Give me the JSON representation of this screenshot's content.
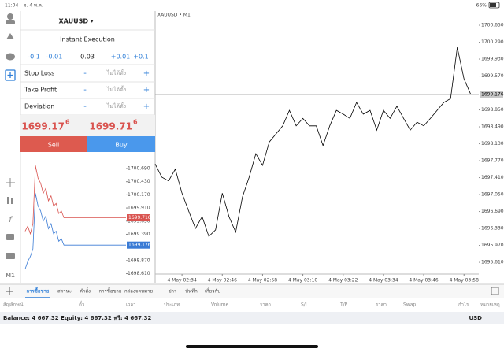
{
  "status_bar": {
    "time": "11:04",
    "date": "จ. 4 พ.ค.",
    "battery": "66%"
  },
  "sidebar": {
    "timeframe": "M1"
  },
  "order_panel": {
    "symbol": "XAUUSD",
    "symbol_caret": "▾",
    "execution": "Instant Execution",
    "volume_steps": [
      "-0.1",
      "-0.01",
      "0.03",
      "+0.01",
      "+0.1"
    ],
    "fields": [
      {
        "label": "Stop Loss",
        "minus": "-",
        "value": "ไม่ได้ตั้ง",
        "plus": "+"
      },
      {
        "label": "Take Profit",
        "minus": "-",
        "value": "ไม่ได้ตั้ง",
        "plus": "+"
      },
      {
        "label": "Deviation",
        "minus": "-",
        "value": "ไม่ได้ตั้ง",
        "plus": "+"
      }
    ],
    "sell_price": {
      "main": "1699.17",
      "sup": "6"
    },
    "buy_price": {
      "main": "1699.71",
      "sup": "6"
    },
    "sell": "Sell",
    "buy": "Buy"
  },
  "chart_data": [
    {
      "type": "line",
      "title": "XAUUSD • M1",
      "series": [
        {
          "color": "#000000",
          "values": [
            1697.7,
            1697.42,
            1697.34,
            1697.59,
            1697.08,
            1696.7,
            1696.33,
            1696.58,
            1696.16,
            1696.3,
            1697.08,
            1696.58,
            1696.25,
            1697.0,
            1697.42,
            1697.92,
            1697.67,
            1698.17,
            1698.34,
            1698.51,
            1698.84,
            1698.51,
            1698.67,
            1698.51,
            1698.51,
            1698.09,
            1698.51,
            1698.84,
            1698.76,
            1698.67,
            1699.01,
            1698.76,
            1698.84,
            1698.42,
            1698.84,
            1698.67,
            1698.93,
            1698.67,
            1698.42,
            1698.59,
            1698.51,
            1698.67,
            1698.84,
            1699.01,
            1699.09,
            1700.18,
            1699.51,
            1699.18
          ]
        }
      ],
      "xlim": [
        0,
        48.2
      ],
      "xticks": [
        {
          "value": 4,
          "label": "4 May 02:34"
        },
        {
          "value": 10,
          "label": "4 May 02:46"
        },
        {
          "value": 16,
          "label": "4 May 02:58"
        },
        {
          "value": 22,
          "label": "4 May 03:10"
        },
        {
          "value": 28,
          "label": "4 May 03:22"
        },
        {
          "value": 34,
          "label": "4 May 03:34"
        },
        {
          "value": 40,
          "label": "4 May 03:46"
        },
        {
          "value": 46,
          "label": "4 May 03:58"
        }
      ],
      "ylim": [
        1695.36,
        1700.935
      ],
      "yticks": [
        {
          "value": 1700.65,
          "label": "1700.650"
        },
        {
          "value": 1700.29,
          "label": "1700.290"
        },
        {
          "value": 1699.93,
          "label": "1699.930"
        },
        {
          "value": 1699.57,
          "label": "1699.570"
        },
        {
          "value": 1698.85,
          "label": "1698.850"
        },
        {
          "value": 1698.49,
          "label": "1698.490"
        },
        {
          "value": 1698.13,
          "label": "1698.130"
        },
        {
          "value": 1697.77,
          "label": "1697.770"
        },
        {
          "value": 1697.41,
          "label": "1697.410"
        },
        {
          "value": 1697.05,
          "label": "1697.050"
        },
        {
          "value": 1696.69,
          "label": "1696.690"
        },
        {
          "value": 1696.33,
          "label": "1696.330"
        },
        {
          "value": 1695.97,
          "label": "1695.970"
        },
        {
          "value": 1695.61,
          "label": "1695.610"
        }
      ],
      "markers": [
        {
          "value": 1699.176,
          "color": "#c8c8c8",
          "text_color": "#000000",
          "line": true
        }
      ]
    },
    {
      "type": "line",
      "series": [
        {
          "color": "#d9534f",
          "x": [
            0,
            1,
            2,
            3,
            4,
            5,
            6,
            7,
            8,
            9,
            10,
            11,
            12,
            13,
            14,
            15,
            39
          ],
          "values": [
            1699.45,
            1699.55,
            1699.4,
            1699.6,
            1700.75,
            1700.5,
            1700.4,
            1700.2,
            1700.3,
            1700.05,
            1700.15,
            1699.95,
            1700.0,
            1699.8,
            1699.85,
            1699.716,
            1699.716
          ]
        },
        {
          "color": "#3a7bd5",
          "x": [
            0,
            1,
            2,
            3,
            4,
            5,
            6,
            7,
            8,
            9,
            10,
            11,
            12,
            13,
            14,
            15,
            39
          ],
          "values": [
            1698.7,
            1698.85,
            1698.95,
            1699.1,
            1700.2,
            1699.95,
            1699.85,
            1699.65,
            1699.75,
            1699.5,
            1699.6,
            1699.4,
            1699.45,
            1699.25,
            1699.3,
            1699.176,
            1699.176
          ]
        }
      ],
      "xlim": [
        -1.8,
        39
      ],
      "ylim": [
        1698.447,
        1700.986
      ],
      "yticks": [
        {
          "value": 1700.69,
          "label": "1700.690"
        },
        {
          "value": 1700.43,
          "label": "1700.430"
        },
        {
          "value": 1700.17,
          "label": "1700.170"
        },
        {
          "value": 1699.91,
          "label": "1699.910"
        },
        {
          "value": 1699.65,
          "label": "1699.650"
        },
        {
          "value": 1699.39,
          "label": "1699.390"
        },
        {
          "value": 1698.87,
          "label": "1698.870"
        },
        {
          "value": 1698.61,
          "label": "1698.610"
        }
      ],
      "markers": [
        {
          "value": 1699.716,
          "color": "#d9534f",
          "text_color": "#ffffff",
          "line": false
        },
        {
          "value": 1699.176,
          "color": "#3a7bd5",
          "text_color": "#ffffff",
          "line": false
        }
      ]
    }
  ],
  "tabs": [
    "การซื้อขาย",
    "สถานะ",
    "คำสั่ง",
    "การซื้อขาย",
    "กล่องจดหมาย",
    "ข่าว",
    "บันทึก",
    "เกี่ยวกับ"
  ],
  "columns": [
    "สัญลักษณ์",
    "ตั๋ว",
    "เวลา",
    "ประเภท",
    "Volume",
    "ราคา",
    "S/L",
    "T/P",
    "ราคา",
    "Swap",
    "กำไร",
    "หมายเหตุ"
  ],
  "account": {
    "summary": "Balance: 4 667.32 Equity: 4 667.32 ฟรี: 4 667.32",
    "currency": "USD"
  }
}
